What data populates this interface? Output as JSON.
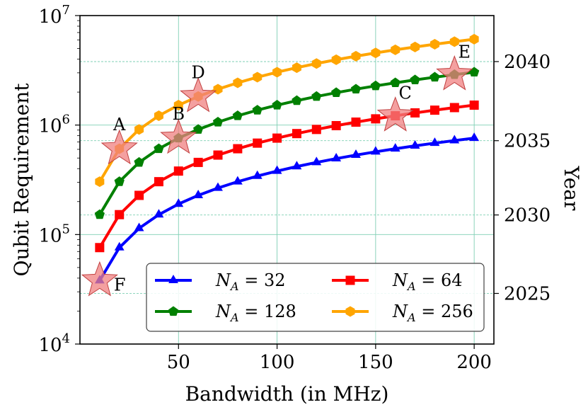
{
  "chart_data": {
    "type": "line",
    "x_scale": "linear",
    "y_scale": "log",
    "xlabel": "Bandwidth (in MHz)",
    "ylabel": "Qubit Requirement",
    "y2label": "Year",
    "xlim": [
      0,
      210
    ],
    "ylim": [
      10000,
      10000000
    ],
    "x_ticks": [
      50,
      100,
      150,
      200
    ],
    "x_tick_labels": [
      "50",
      "100",
      "150",
      "200"
    ],
    "y_ticks": [
      10000,
      100000,
      1000000,
      10000000
    ],
    "y_tick_labels": [
      {
        "base": "10",
        "exp": "4"
      },
      {
        "base": "10",
        "exp": "5"
      },
      {
        "base": "10",
        "exp": "6"
      },
      {
        "base": "10",
        "exp": "7"
      }
    ],
    "y2_ticks": [
      {
        "label": "2025",
        "qubits": 29000
      },
      {
        "label": "2030",
        "qubits": 151000
      },
      {
        "label": "2035",
        "qubits": 720000
      },
      {
        "label": "2040",
        "qubits": 3800000
      }
    ],
    "grid": true,
    "legend_position": "bottom-right",
    "x": [
      10,
      20,
      30,
      40,
      50,
      60,
      70,
      80,
      90,
      100,
      110,
      120,
      130,
      140,
      150,
      160,
      170,
      180,
      190,
      200
    ],
    "series": [
      {
        "name": "32",
        "legend_symbol": "N",
        "legend_sub": "A",
        "legend_prefix": " = ",
        "color": "#0000ff",
        "marker": "triangle",
        "values": [
          38000,
          76000,
          114000,
          152000,
          190000,
          228000,
          266000,
          304000,
          342000,
          380000,
          418000,
          456000,
          494000,
          532000,
          570000,
          608000,
          646000,
          684000,
          722000,
          760000
        ]
      },
      {
        "name": "64",
        "legend_symbol": "N",
        "legend_sub": "A",
        "legend_prefix": " = ",
        "color": "#ff0000",
        "marker": "square",
        "values": [
          76000,
          152000,
          228000,
          304000,
          380000,
          456000,
          532000,
          608000,
          684000,
          760000,
          836000,
          912000,
          988000,
          1064000,
          1140000,
          1216000,
          1292000,
          1368000,
          1444000,
          1520000
        ]
      },
      {
        "name": "128",
        "legend_symbol": "N",
        "legend_sub": "A",
        "legend_prefix": " = ",
        "color": "#008000",
        "marker": "pentagon",
        "values": [
          152000,
          304000,
          456000,
          608000,
          760000,
          912000,
          1064000,
          1216000,
          1368000,
          1520000,
          1672000,
          1824000,
          1976000,
          2128000,
          2280000,
          2432000,
          2584000,
          2736000,
          2888000,
          3040000
        ]
      },
      {
        "name": "256",
        "legend_symbol": "N",
        "legend_sub": "A",
        "legend_prefix": " = ",
        "color": "#ffa500",
        "marker": "hexagon",
        "values": [
          304000,
          608000,
          912000,
          1216000,
          1520000,
          1824000,
          2128000,
          2432000,
          2736000,
          3040000,
          3344000,
          3648000,
          3952000,
          4256000,
          4560000,
          4864000,
          5168000,
          5472000,
          5776000,
          6080000
        ]
      }
    ],
    "annotations": [
      {
        "label": "A",
        "x": 20,
        "y": 608000,
        "label_pos": "above"
      },
      {
        "label": "B",
        "x": 50,
        "y": 760000,
        "label_pos": "above"
      },
      {
        "label": "C",
        "x": 160,
        "y": 1216000,
        "label_pos": "above-right"
      },
      {
        "label": "D",
        "x": 60,
        "y": 1824000,
        "label_pos": "above"
      },
      {
        "label": "E",
        "x": 190,
        "y": 2888000,
        "label_pos": "above-right"
      },
      {
        "label": "F",
        "x": 10,
        "y": 38000,
        "label_pos": "right"
      }
    ],
    "star_color": "#f08080"
  }
}
